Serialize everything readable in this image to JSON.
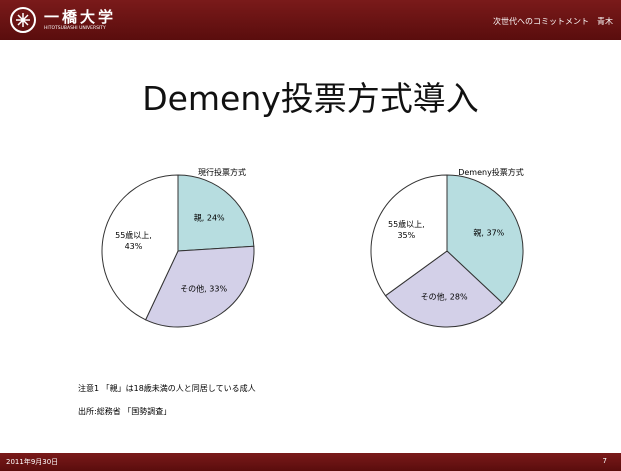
{
  "header": {
    "logo": "一橋大学",
    "logo_sub": "HITOTSUBASHI UNIVERSITY",
    "right": "次世代へのコミットメント　青木"
  },
  "title": "Demeny投票方式導入",
  "chart_data": [
    {
      "type": "pie",
      "title": "現行投票方式",
      "categories": [
        "親",
        "その他",
        "55歳以上"
      ],
      "values": [
        24,
        33,
        43
      ],
      "value_labels": [
        "親, 24%",
        "その他, 33%",
        "55歳以上, 43%"
      ],
      "colors": [
        "#b7dde0",
        "#d3d0e8",
        "#ffffff"
      ]
    },
    {
      "type": "pie",
      "title": "Demeny投票方式",
      "categories": [
        "親",
        "その他",
        "55歳以上"
      ],
      "values": [
        37,
        28,
        35
      ],
      "value_labels": [
        "親, 37%",
        "その他, 28%",
        "55歳以上, 35%"
      ],
      "colors": [
        "#b7dde0",
        "#d3d0e8",
        "#ffffff"
      ]
    }
  ],
  "notes": [
    "注意1 「親」は18歳未満の人と同居している成人",
    "出所:総務省 「国勢調査」"
  ],
  "footer": {
    "date": "2011年9月30日",
    "page": "7"
  }
}
